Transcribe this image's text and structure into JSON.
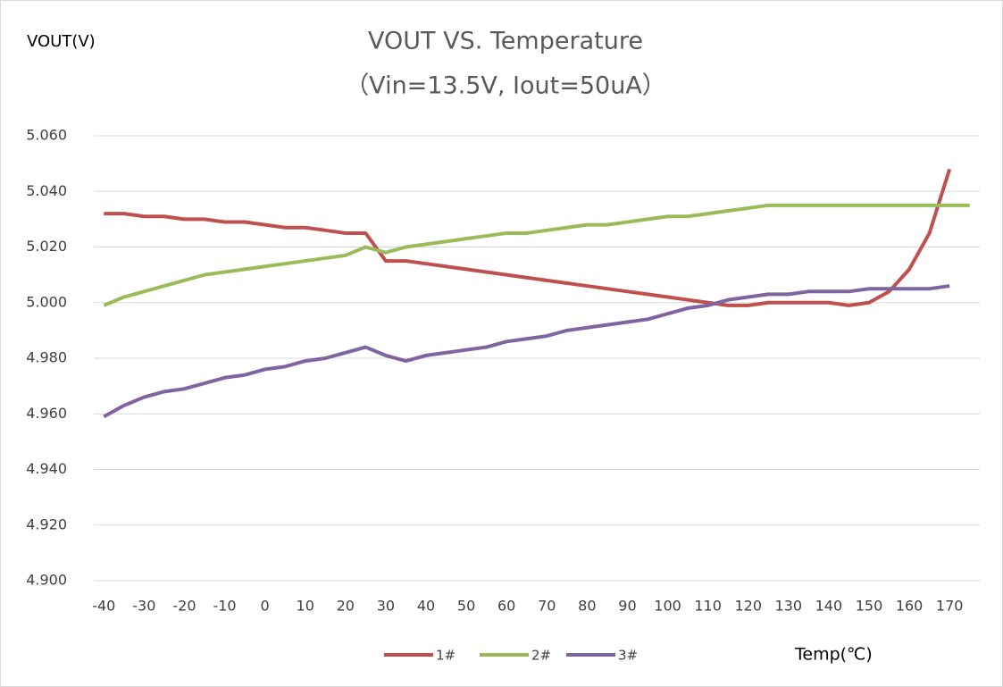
{
  "chart_data": {
    "type": "line",
    "title": "VOUT VS. Temperature",
    "subtitle": "（Vin=13.5V, Iout=50uA）",
    "y_label": "VOUT(V)",
    "x_label": "Temp(℃)",
    "x": [
      -40,
      -35,
      -30,
      -25,
      -20,
      -15,
      -10,
      -5,
      0,
      5,
      10,
      15,
      20,
      25,
      30,
      35,
      40,
      45,
      50,
      55,
      60,
      65,
      70,
      75,
      80,
      85,
      90,
      95,
      100,
      105,
      110,
      115,
      120,
      125,
      130,
      135,
      140,
      145,
      150,
      155,
      160,
      165,
      170,
      175
    ],
    "series": [
      {
        "name": "1#",
        "color": "#c0504d",
        "values": [
          5.032,
          5.032,
          5.031,
          5.031,
          5.03,
          5.03,
          5.029,
          5.029,
          5.028,
          5.027,
          5.027,
          5.026,
          5.025,
          5.025,
          5.015,
          5.015,
          5.014,
          5.013,
          5.012,
          5.011,
          5.01,
          5.009,
          5.008,
          5.007,
          5.006,
          5.005,
          5.004,
          5.003,
          5.002,
          5.001,
          5.0,
          4.999,
          4.999,
          5.0,
          5.0,
          5.0,
          5.0,
          4.999,
          5.0,
          5.004,
          5.012,
          5.025,
          5.048,
          null
        ]
      },
      {
        "name": "2#",
        "color": "#9bbb59",
        "values": [
          4.999,
          5.002,
          5.004,
          5.006,
          5.008,
          5.01,
          5.011,
          5.012,
          5.013,
          5.014,
          5.015,
          5.016,
          5.017,
          5.02,
          5.018,
          5.02,
          5.021,
          5.022,
          5.023,
          5.024,
          5.025,
          5.025,
          5.026,
          5.027,
          5.028,
          5.028,
          5.029,
          5.03,
          5.031,
          5.031,
          5.032,
          5.033,
          5.034,
          5.035,
          5.035,
          5.035,
          5.035,
          5.035,
          5.035,
          5.035,
          5.035,
          5.035,
          5.035,
          5.035
        ]
      },
      {
        "name": "3#",
        "color": "#8064a2",
        "values": [
          4.959,
          4.963,
          4.966,
          4.968,
          4.969,
          4.971,
          4.973,
          4.974,
          4.976,
          4.977,
          4.979,
          4.98,
          4.982,
          4.984,
          4.981,
          4.979,
          4.981,
          4.982,
          4.983,
          4.984,
          4.986,
          4.987,
          4.988,
          4.99,
          4.991,
          4.992,
          4.993,
          4.994,
          4.996,
          4.998,
          4.999,
          5.001,
          5.002,
          5.003,
          5.003,
          5.004,
          5.004,
          5.004,
          5.005,
          5.005,
          5.005,
          5.005,
          5.006,
          null
        ]
      }
    ],
    "xlim": [
      -42.5,
      177.5
    ],
    "xticks": [
      -40,
      -30,
      -20,
      -10,
      0,
      10,
      20,
      30,
      40,
      50,
      60,
      70,
      80,
      90,
      100,
      110,
      120,
      130,
      140,
      150,
      160,
      170
    ],
    "ylim": [
      4.9,
      5.06
    ],
    "yticks": [
      {
        "value": 4.9,
        "label": "4.900"
      },
      {
        "value": 4.92,
        "label": "4.920"
      },
      {
        "value": 4.94,
        "label": "4.940"
      },
      {
        "value": 4.96,
        "label": "4.960"
      },
      {
        "value": 4.98,
        "label": "4.980"
      },
      {
        "value": 5.0,
        "label": "5.000"
      },
      {
        "value": 5.02,
        "label": "5.020"
      },
      {
        "value": 5.04,
        "label": "5.040"
      },
      {
        "value": 5.06,
        "label": "5.060"
      }
    ],
    "grid": true,
    "legend": "bottom"
  }
}
